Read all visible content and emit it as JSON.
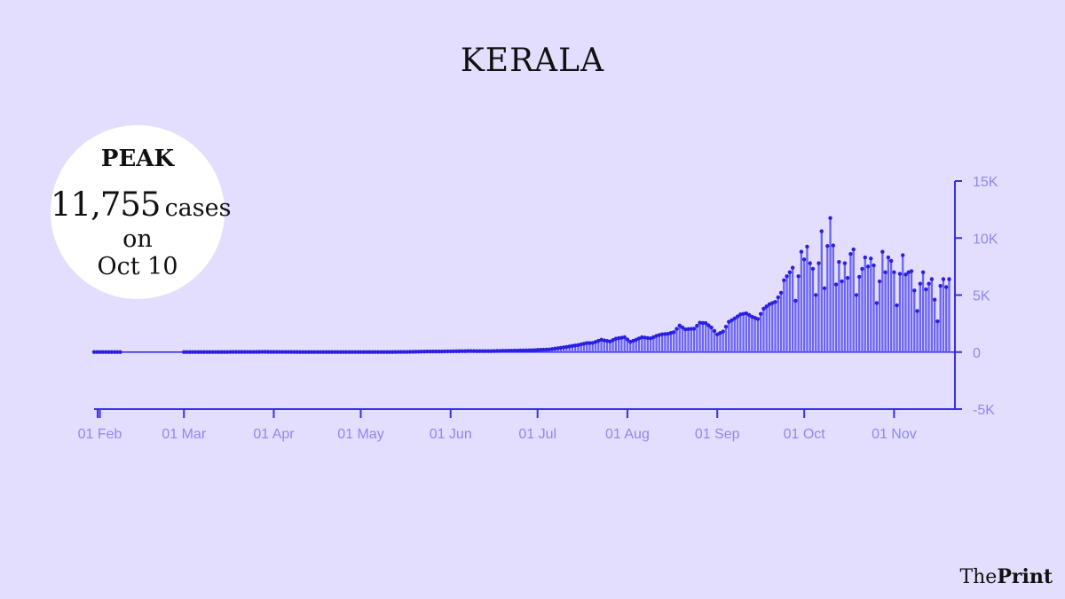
{
  "header": {
    "title": "KERALA"
  },
  "peak_callout": {
    "heading": "PEAK",
    "value": "11,755",
    "unit": "cases",
    "on": "on",
    "date": "Oct 10"
  },
  "brand": {
    "prefix": "The",
    "name": "Print"
  },
  "colors": {
    "background": "#e3defe",
    "bar": "#6a63f0",
    "dot": "#2b1fe0",
    "axis": "#3a2fe6",
    "tick_text": "#8f88ee"
  },
  "chart_data": {
    "type": "bar",
    "title": "KERALA",
    "x_start": "2020-01-30",
    "x_end": "2020-11-22",
    "xticks": [
      "01 Feb",
      "01 Mar",
      "01 Apr",
      "01 May",
      "01 Jun",
      "01 Jul",
      "01 Aug",
      "01 Sep",
      "01 Oct",
      "01 Nov"
    ],
    "yticks": [
      "15K",
      "10K",
      "5K",
      "0",
      "-5K"
    ],
    "ylim": [
      -5000,
      15000
    ],
    "y_axis_side": "right",
    "grid": false,
    "series": [
      {
        "values": [
          {
            "x": "2020-01-30",
            "y": 1
          },
          {
            "x": "2020-02-02",
            "y": 1
          },
          {
            "x": "2020-02-03",
            "y": 1
          },
          {
            "x": "2020-02-14",
            "y": 0
          },
          {
            "x": "2020-03-01",
            "y": 0
          },
          {
            "x": "2020-03-08",
            "y": 3
          },
          {
            "x": "2020-03-15",
            "y": 7
          },
          {
            "x": "2020-03-22",
            "y": 15
          },
          {
            "x": "2020-03-29",
            "y": 20
          },
          {
            "x": "2020-04-05",
            "y": 10
          },
          {
            "x": "2020-04-12",
            "y": 8
          },
          {
            "x": "2020-04-19",
            "y": 5
          },
          {
            "x": "2020-04-26",
            "y": 6
          },
          {
            "x": "2020-05-03",
            "y": 2
          },
          {
            "x": "2020-05-10",
            "y": 5
          },
          {
            "x": "2020-05-17",
            "y": 15
          },
          {
            "x": "2020-05-24",
            "y": 50
          },
          {
            "x": "2020-05-31",
            "y": 60
          },
          {
            "x": "2020-06-07",
            "y": 90
          },
          {
            "x": "2020-06-14",
            "y": 80
          },
          {
            "x": "2020-06-21",
            "y": 120
          },
          {
            "x": "2020-06-28",
            "y": 150
          },
          {
            "x": "2020-07-05",
            "y": 230
          },
          {
            "x": "2020-07-10",
            "y": 410
          },
          {
            "x": "2020-07-15",
            "y": 620
          },
          {
            "x": "2020-07-18",
            "y": 790
          },
          {
            "x": "2020-07-20",
            "y": 800
          },
          {
            "x": "2020-07-23",
            "y": 1080
          },
          {
            "x": "2020-07-26",
            "y": 930
          },
          {
            "x": "2020-07-28",
            "y": 1170
          },
          {
            "x": "2020-07-31",
            "y": 1310
          },
          {
            "x": "2020-08-02",
            "y": 900
          },
          {
            "x": "2020-08-04",
            "y": 1080
          },
          {
            "x": "2020-08-06",
            "y": 1300
          },
          {
            "x": "2020-08-09",
            "y": 1200
          },
          {
            "x": "2020-08-11",
            "y": 1420
          },
          {
            "x": "2020-08-13",
            "y": 1560
          },
          {
            "x": "2020-08-15",
            "y": 1600
          },
          {
            "x": "2020-08-17",
            "y": 1750
          },
          {
            "x": "2020-08-19",
            "y": 2330
          },
          {
            "x": "2020-08-21",
            "y": 2000
          },
          {
            "x": "2020-08-24",
            "y": 2050
          },
          {
            "x": "2020-08-26",
            "y": 2570
          },
          {
            "x": "2020-08-28",
            "y": 2540
          },
          {
            "x": "2020-08-30",
            "y": 2150
          },
          {
            "x": "2020-09-01",
            "y": 1550
          },
          {
            "x": "2020-09-03",
            "y": 1800
          },
          {
            "x": "2020-09-05",
            "y": 2650
          },
          {
            "x": "2020-09-07",
            "y": 2950
          },
          {
            "x": "2020-09-09",
            "y": 3300
          },
          {
            "x": "2020-09-11",
            "y": 3400
          },
          {
            "x": "2020-09-13",
            "y": 3100
          },
          {
            "x": "2020-09-15",
            "y": 2900
          },
          {
            "x": "2020-09-17",
            "y": 3800
          },
          {
            "x": "2020-09-19",
            "y": 4200
          },
          {
            "x": "2020-09-21",
            "y": 4400
          },
          {
            "x": "2020-09-23",
            "y": 5200
          },
          {
            "x": "2020-09-24",
            "y": 6300
          },
          {
            "x": "2020-09-26",
            "y": 7000
          },
          {
            "x": "2020-09-27",
            "y": 7400
          },
          {
            "x": "2020-09-28",
            "y": 4500
          },
          {
            "x": "2020-09-30",
            "y": 8800
          },
          {
            "x": "2020-10-01",
            "y": 8130
          },
          {
            "x": "2020-10-02",
            "y": 9250
          },
          {
            "x": "2020-10-03",
            "y": 7800
          },
          {
            "x": "2020-10-04",
            "y": 7300
          },
          {
            "x": "2020-10-05",
            "y": 5000
          },
          {
            "x": "2020-10-07",
            "y": 10600
          },
          {
            "x": "2020-10-08",
            "y": 5600
          },
          {
            "x": "2020-10-09",
            "y": 9300
          },
          {
            "x": "2020-10-10",
            "y": 11755
          },
          {
            "x": "2020-10-11",
            "y": 9350
          },
          {
            "x": "2020-10-12",
            "y": 5930
          },
          {
            "x": "2020-10-13",
            "y": 7900
          },
          {
            "x": "2020-10-14",
            "y": 6200
          },
          {
            "x": "2020-10-15",
            "y": 7800
          },
          {
            "x": "2020-10-16",
            "y": 6500
          },
          {
            "x": "2020-10-17",
            "y": 8600
          },
          {
            "x": "2020-10-18",
            "y": 9000
          },
          {
            "x": "2020-10-19",
            "y": 5000
          },
          {
            "x": "2020-10-20",
            "y": 6600
          },
          {
            "x": "2020-10-21",
            "y": 7300
          },
          {
            "x": "2020-10-22",
            "y": 8300
          },
          {
            "x": "2020-10-23",
            "y": 7500
          },
          {
            "x": "2020-10-24",
            "y": 8200
          },
          {
            "x": "2020-10-25",
            "y": 7600
          },
          {
            "x": "2020-10-26",
            "y": 4300
          },
          {
            "x": "2020-10-27",
            "y": 6200
          },
          {
            "x": "2020-10-28",
            "y": 8800
          },
          {
            "x": "2020-10-29",
            "y": 7000
          },
          {
            "x": "2020-10-30",
            "y": 8300
          },
          {
            "x": "2020-10-31",
            "y": 8000
          },
          {
            "x": "2020-11-01",
            "y": 7000
          },
          {
            "x": "2020-11-02",
            "y": 4100
          },
          {
            "x": "2020-11-03",
            "y": 6860
          },
          {
            "x": "2020-11-04",
            "y": 8500
          },
          {
            "x": "2020-11-05",
            "y": 6800
          },
          {
            "x": "2020-11-06",
            "y": 7000
          },
          {
            "x": "2020-11-07",
            "y": 7100
          },
          {
            "x": "2020-11-08",
            "y": 5400
          },
          {
            "x": "2020-11-09",
            "y": 3600
          },
          {
            "x": "2020-11-10",
            "y": 6000
          },
          {
            "x": "2020-11-11",
            "y": 7000
          },
          {
            "x": "2020-11-12",
            "y": 5500
          },
          {
            "x": "2020-11-13",
            "y": 6000
          },
          {
            "x": "2020-11-14",
            "y": 6400
          },
          {
            "x": "2020-11-15",
            "y": 4600
          },
          {
            "x": "2020-11-16",
            "y": 2700
          },
          {
            "x": "2020-11-17",
            "y": 5800
          },
          {
            "x": "2020-11-18",
            "y": 6400
          },
          {
            "x": "2020-11-19",
            "y": 5700
          },
          {
            "x": "2020-11-20",
            "y": 6400
          }
        ]
      }
    ]
  }
}
